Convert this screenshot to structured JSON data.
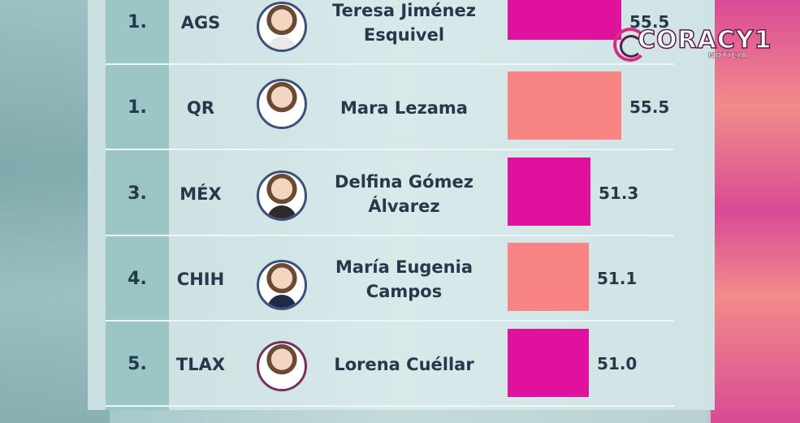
{
  "colors": {
    "magenta": "#e0119c",
    "salmon": "#f88583",
    "text": "#243a4a"
  },
  "logo": {
    "brand": "CORACY1",
    "sub": "NOTICIA"
  },
  "rows": [
    {
      "rank": "1.",
      "state": "AGS",
      "name_line1": "Teresa Jiménez",
      "name_line2": "Esquivel",
      "value": "55.5",
      "value_num": 55.5,
      "bar_color": "magenta"
    },
    {
      "rank": "1.",
      "state": "QR",
      "name_line1": "Mara Lezama",
      "name_line2": "",
      "value": "55.5",
      "value_num": 55.5,
      "bar_color": "salmon"
    },
    {
      "rank": "3.",
      "state": "MÉX",
      "name_line1": "Delfina Gómez",
      "name_line2": "Álvarez",
      "value": "51.3",
      "value_num": 51.3,
      "bar_color": "magenta"
    },
    {
      "rank": "4.",
      "state": "CHIH",
      "name_line1": "María Eugenia",
      "name_line2": "Campos",
      "value": "51.1",
      "value_num": 51.1,
      "bar_color": "salmon"
    },
    {
      "rank": "5.",
      "state": "TLAX",
      "name_line1": "Lorena Cuéllar",
      "name_line2": "",
      "value": "51.0",
      "value_num": 51.0,
      "bar_color": "magenta"
    }
  ]
}
